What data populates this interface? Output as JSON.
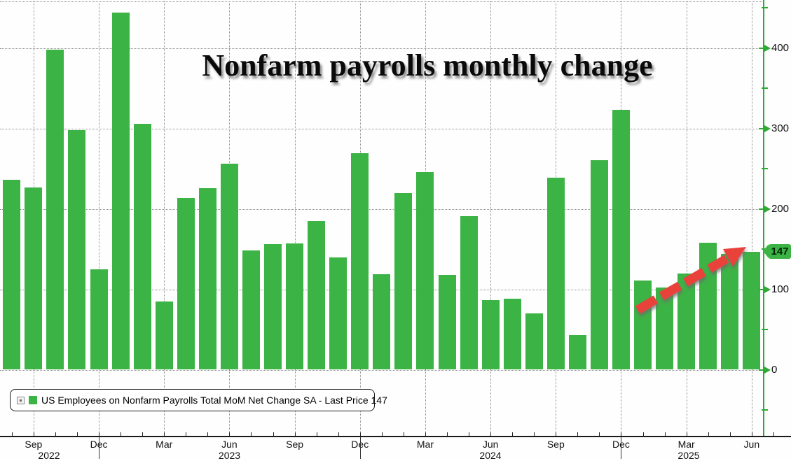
{
  "title": "Nonfarm payrolls monthly change",
  "legend": {
    "series_label": "US Employees on Nonfarm Payrolls Total MoM Net Change SA - Last Price 147",
    "swatch_color": "#3cb345"
  },
  "last_price_tag": "147",
  "colors": {
    "bar_green": "#3cb345",
    "axis_green": "#2faa35",
    "arrow_red": "#e8433b",
    "grid_gray": "#8e8e8e",
    "text_black": "#111111"
  },
  "y_axis": {
    "side": "right",
    "major_tick_labels": [
      "0",
      "100",
      "200",
      "300",
      "400"
    ],
    "major_tick_values": [
      0,
      100,
      200,
      300,
      400
    ],
    "minor_tick_values": [
      -50,
      50,
      150,
      250,
      350,
      450
    ],
    "last_price": 147
  },
  "x_axis": {
    "quarter_month_labels": [
      "Sep",
      "Dec",
      "Mar",
      "Jun",
      "Sep",
      "Dec",
      "Mar",
      "Jun",
      "Sep",
      "Dec",
      "Mar",
      "Jun"
    ],
    "year_labels": [
      "2022",
      "2023",
      "2024",
      "2025"
    ]
  },
  "annotation": {
    "type": "trend-arrow",
    "style": "thick red dashed arrow pointing up-right toward last price",
    "color": "#e8433b"
  },
  "chart_data": {
    "type": "bar",
    "title": "Nonfarm payrolls monthly change",
    "series_label": "US Employees on Nonfarm Payrolls Total MoM Net Change SA",
    "last_price": 147,
    "categories": [
      "Aug 2022",
      "Sep 2022",
      "Oct 2022",
      "Nov 2022",
      "Dec 2022",
      "Jan 2023",
      "Feb 2023",
      "Mar 2023",
      "Apr 2023",
      "May 2023",
      "Jun 2023",
      "Jul 2023",
      "Aug 2023",
      "Sep 2023",
      "Oct 2023",
      "Nov 2023",
      "Dec 2023",
      "Jan 2024",
      "Feb 2024",
      "Mar 2024",
      "Apr 2024",
      "May 2024",
      "Jun 2024",
      "Jul 2024",
      "Aug 2024",
      "Sep 2024",
      "Oct 2024",
      "Nov 2024",
      "Dec 2024",
      "Jan 2025",
      "Feb 2025",
      "Mar 2025",
      "Apr 2025",
      "May 2025",
      "Jun 2025"
    ],
    "values": [
      236,
      227,
      398,
      298,
      125,
      444,
      306,
      85,
      214,
      226,
      256,
      148,
      156,
      157,
      185,
      140,
      269,
      119,
      220,
      246,
      118,
      191,
      87,
      88,
      70,
      239,
      43,
      261,
      323,
      111,
      102,
      120,
      158,
      144,
      147
    ],
    "xlabel": "",
    "ylabel": "",
    "ylim": [
      -84,
      459
    ],
    "yticks": [
      0,
      100,
      200,
      300,
      400
    ],
    "grid": true,
    "legend_position": "bottom-left",
    "bar_color": "#3cb345"
  }
}
